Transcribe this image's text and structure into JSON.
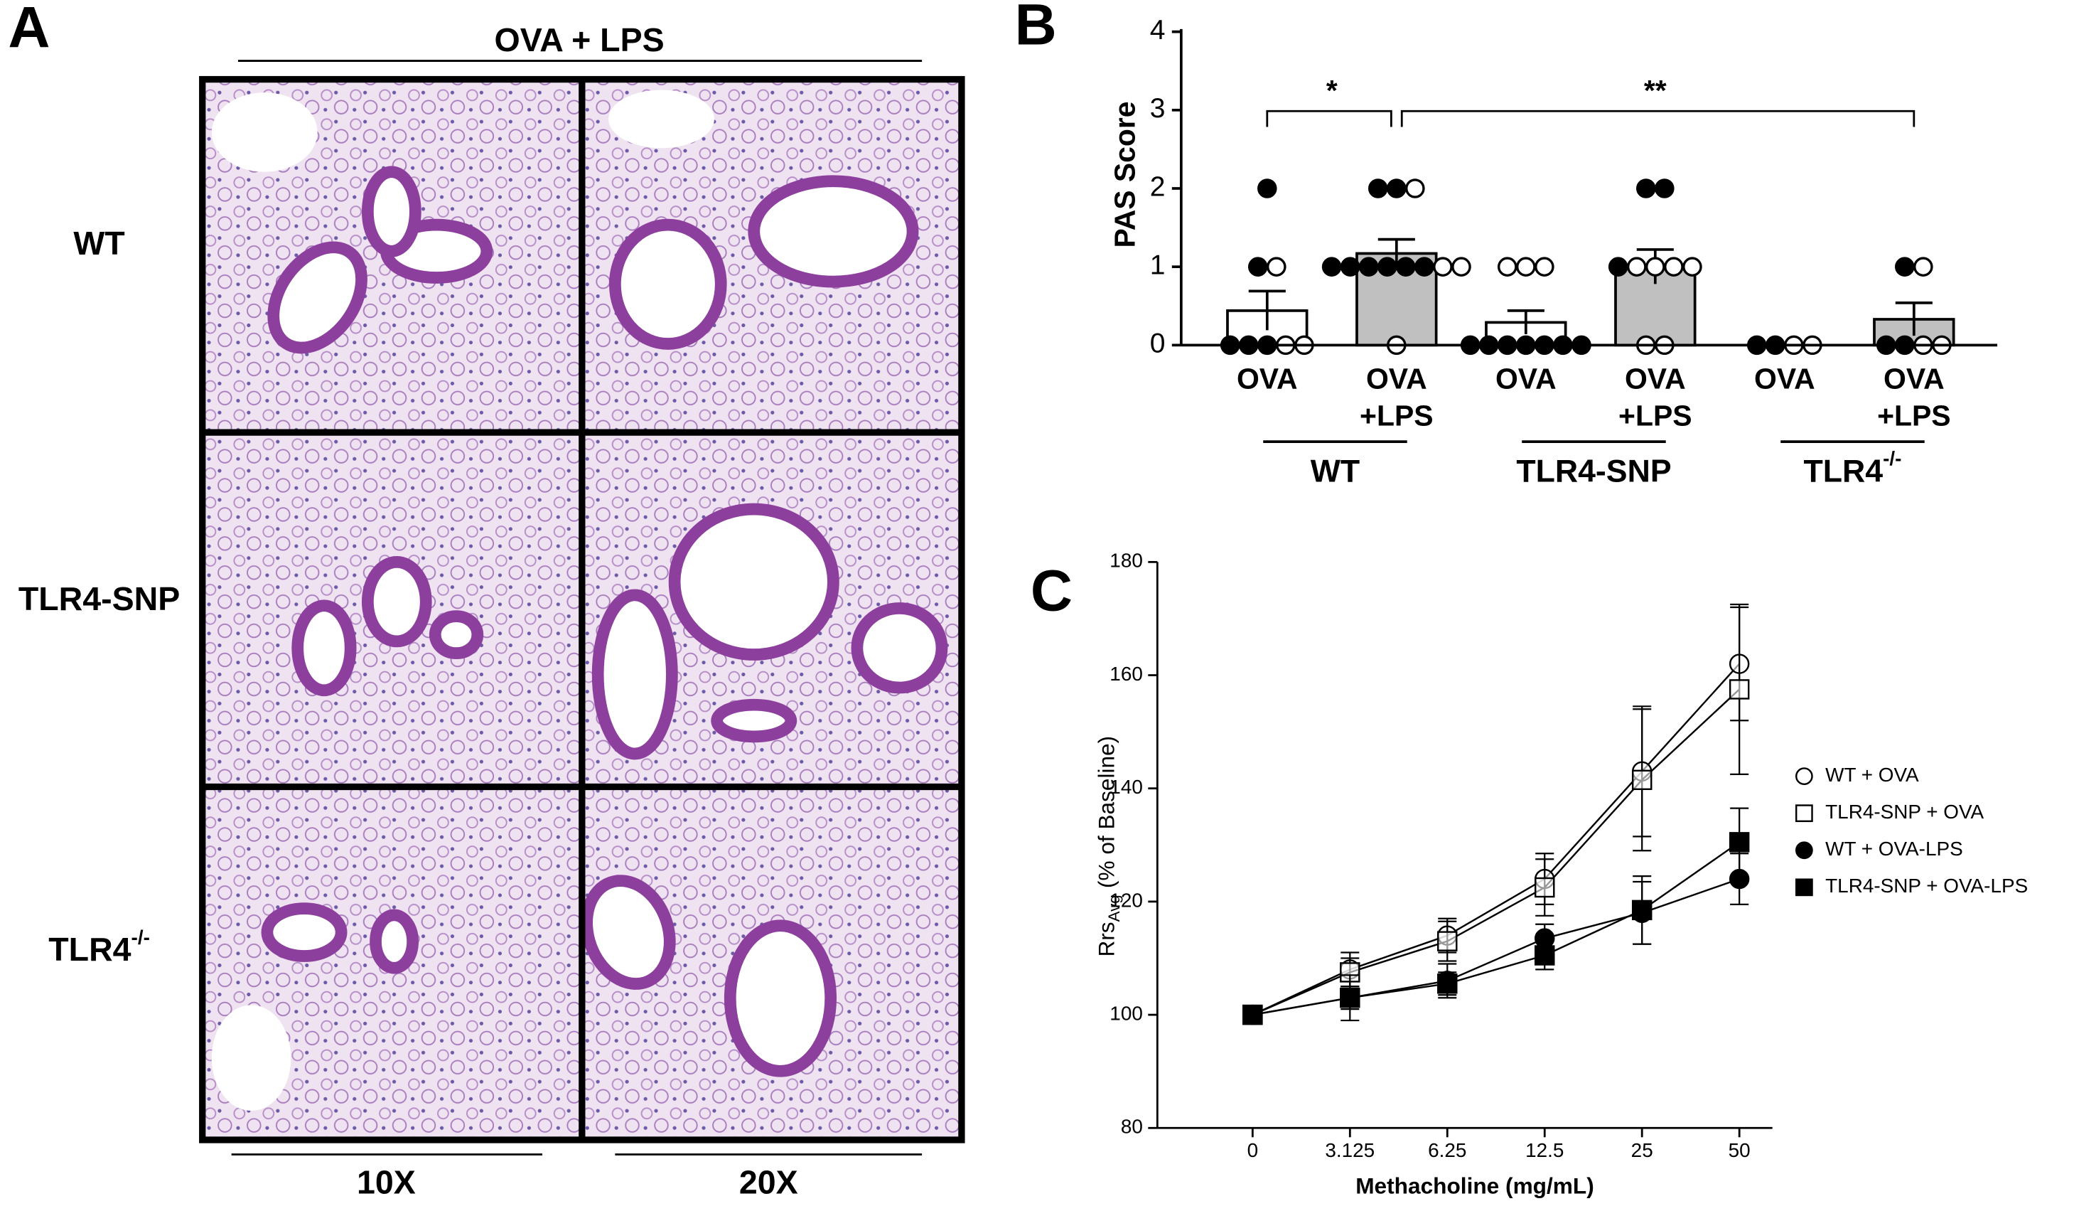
{
  "panel_a": {
    "label": "A",
    "title": "OVA + LPS",
    "rows": [
      {
        "text": "WT"
      },
      {
        "text": "TLR4-SNP"
      },
      {
        "text": "TLR4",
        "sup": "-/-"
      }
    ],
    "columns": [
      "10X",
      "20X"
    ]
  },
  "chart_data": [
    {
      "type": "bar",
      "panel": "B",
      "y_label": "PAS Score",
      "categories": [
        [
          "OVA"
        ],
        [
          "OVA",
          "+LPS"
        ],
        [
          "OVA"
        ],
        [
          "OVA",
          "+LPS"
        ],
        [
          "OVA"
        ],
        [
          "OVA",
          "+LPS"
        ]
      ],
      "groups": [
        {
          "text": "WT"
        },
        {
          "text": "TLR4-SNP"
        },
        {
          "text": "TLR4",
          "sup": "-/-"
        }
      ],
      "values": [
        0.44,
        1.17,
        0.29,
        1.0,
        0,
        0.33
      ],
      "errors": [
        0.25,
        0.18,
        0.15,
        0.22,
        0,
        0.21
      ],
      "colors": [
        "#ffffff",
        "#c0c0c0",
        "#ffffff",
        "#c0c0c0",
        "#ffffff",
        "#c0c0c0"
      ],
      "points": [
        {
          "filled": [
            2,
            1,
            0,
            0,
            0
          ],
          "open": [
            1,
            0,
            0
          ]
        },
        {
          "filled": [
            2,
            2,
            1,
            1,
            1,
            1,
            1,
            1
          ],
          "open": [
            2,
            1,
            1,
            0
          ]
        },
        {
          "filled": [
            0,
            0,
            0,
            0,
            0,
            0,
            0
          ],
          "open": [
            1,
            1,
            1
          ]
        },
        {
          "filled": [
            2,
            2,
            1
          ],
          "open": [
            1,
            1,
            1,
            1,
            0,
            0
          ]
        },
        {
          "filled": [
            0,
            0
          ],
          "open": [
            0,
            0
          ]
        },
        {
          "filled": [
            1,
            0,
            0
          ],
          "open": [
            1,
            0,
            0
          ]
        }
      ],
      "ylim": [
        0,
        4
      ],
      "yticks": [
        0,
        1,
        2,
        3,
        4
      ],
      "annotations": [
        {
          "text": "*",
          "from": 0,
          "to": 1
        },
        {
          "text": "**",
          "from": 1,
          "to": 5
        }
      ]
    },
    {
      "type": "line",
      "panel": "C",
      "y_label": {
        "text": "Rrs",
        "sub": "Avg",
        "suffix": "(% of Baseline)"
      },
      "x_label": "Methacholine (mg/mL)",
      "categories": [
        "0",
        "3.125",
        "6.25",
        "12.5",
        "25",
        "50"
      ],
      "ylim": [
        80,
        180
      ],
      "yticks": [
        80,
        100,
        120,
        140,
        160,
        180
      ],
      "series": [
        {
          "name": "WT + OVA",
          "color": "#000000",
          "marker": "circle",
          "filled": false,
          "values": [
            100,
            108,
            114,
            124,
            143,
            162
          ],
          "errors": [
            0,
            3,
            3,
            4.5,
            11.5,
            10
          ]
        },
        {
          "name": "TLR4-SNP + OVA",
          "color": "#000000",
          "marker": "square",
          "filled": false,
          "values": [
            100,
            107.5,
            113,
            122.5,
            141.5,
            157.5
          ],
          "errors": [
            0,
            2.5,
            3.5,
            5,
            12.5,
            15
          ]
        },
        {
          "name": "WT + OVA-LPS",
          "color": "#000000",
          "marker": "circle",
          "filled": true,
          "values": [
            100,
            103,
            106,
            113.5,
            118,
            124
          ],
          "errors": [
            0,
            4,
            3,
            2.5,
            5.5,
            4.5
          ]
        },
        {
          "name": "TLR4-SNP + OVA-LPS",
          "color": "#000000",
          "marker": "square",
          "filled": true,
          "values": [
            100,
            103,
            105.5,
            110.5,
            118.5,
            130.5
          ],
          "errors": [
            0,
            2,
            2,
            2.5,
            6,
            6
          ]
        }
      ]
    }
  ]
}
